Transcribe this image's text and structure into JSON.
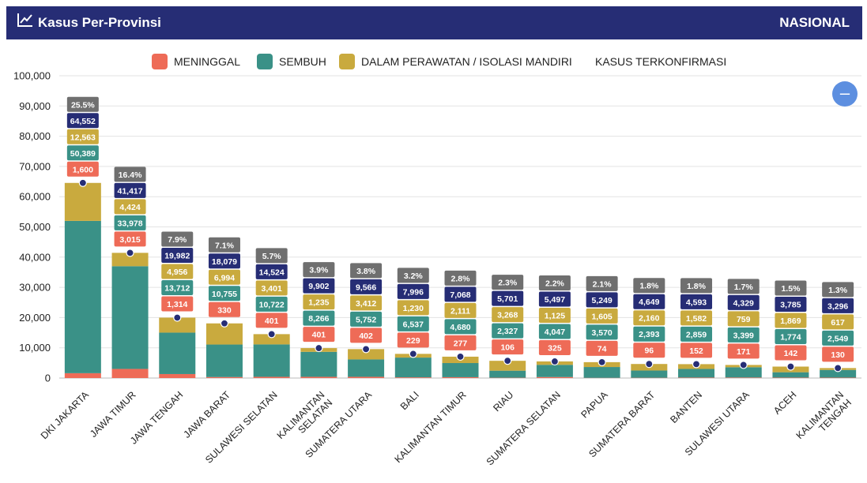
{
  "header": {
    "title": "Kasus Per-Provinsi",
    "scope": "NASIONAL",
    "title_icon": "line-chart-icon"
  },
  "collapse_button": "–",
  "chart_data": {
    "type": "bar",
    "stacked": true,
    "categories": [
      "DKI JAKARTA",
      "JAWA TIMUR",
      "JAWA TENGAH",
      "JAWA BARAT",
      "SULAWESI SELATAN",
      "KALIMANTAN SELATAN",
      "SUMATERA UTARA",
      "BALI",
      "KALIMANTAN TIMUR",
      "RIAU",
      "SUMATERA SELATAN",
      "PAPUA",
      "SUMATERA BARAT",
      "BANTEN",
      "SULAWESI UTARA",
      "ACEH",
      "KALIMANTAN TENGAH"
    ],
    "category_lines": [
      [
        "DKI JAKARTA"
      ],
      [
        "JAWA TIMUR"
      ],
      [
        "JAWA TENGAH"
      ],
      [
        "JAWA BARAT"
      ],
      [
        "SULAWESI SELATAN"
      ],
      [
        "KALIMANTAN",
        "SELATAN"
      ],
      [
        "SUMATERA UTARA"
      ],
      [
        "BALI"
      ],
      [
        "KALIMANTAN TIMUR"
      ],
      [
        "RIAU"
      ],
      [
        "SUMATERA SELATAN"
      ],
      [
        "PAPUA"
      ],
      [
        "SUMATERA BARAT"
      ],
      [
        "BANTEN"
      ],
      [
        "SULAWESI UTARA"
      ],
      [
        "ACEH"
      ],
      [
        "KALIMANTAN",
        "TENGAH"
      ]
    ],
    "series": [
      {
        "name": "MENINGGAL",
        "color": "#ee6b57",
        "values": [
          1600,
          3015,
          1314,
          330,
          401,
          401,
          402,
          229,
          277,
          106,
          325,
          74,
          96,
          152,
          171,
          142,
          130
        ],
        "labels": [
          "1,600",
          "3,015",
          "1,314",
          "330",
          "401",
          "401",
          "402",
          "229",
          "277",
          "106",
          "325",
          "74",
          "96",
          "152",
          "171",
          "142",
          "130"
        ]
      },
      {
        "name": "SEMBUH",
        "color": "#3a9187",
        "values": [
          50389,
          33978,
          13712,
          10755,
          10722,
          8266,
          5752,
          6537,
          4680,
          2327,
          4047,
          3570,
          2393,
          2859,
          3399,
          1774,
          2549
        ],
        "labels": [
          "50,389",
          "33,978",
          "13,712",
          "10,755",
          "10,722",
          "8,266",
          "5,752",
          "6,537",
          "4,680",
          "2,327",
          "4,047",
          "3,570",
          "2,393",
          "2,859",
          "3,399",
          "1,774",
          "2,549"
        ]
      },
      {
        "name": "DALAM PERAWATAN / ISOLASI MANDIRI",
        "color": "#c9aa3e",
        "values": [
          12563,
          4424,
          4956,
          6994,
          3401,
          1235,
          3412,
          1230,
          2111,
          3268,
          1125,
          1605,
          2160,
          1582,
          759,
          1869,
          617
        ],
        "labels": [
          "12,563",
          "4,424",
          "4,956",
          "6,994",
          "3,401",
          "1,235",
          "3,412",
          "1,230",
          "2,111",
          "3,268",
          "1,125",
          "1,605",
          "2,160",
          "1,582",
          "759",
          "1,869",
          "617"
        ]
      }
    ],
    "confirmed": {
      "name": "KASUS TERKONFIRMASI",
      "color": "#262d75",
      "values": [
        64552,
        41417,
        19982,
        18079,
        14524,
        9902,
        9566,
        7996,
        7068,
        5701,
        5497,
        5249,
        4649,
        4593,
        4329,
        3785,
        3296
      ],
      "labels": [
        "64,552",
        "41,417",
        "19,982",
        "18,079",
        "14,524",
        "9,902",
        "9,566",
        "7,996",
        "7,068",
        "5,701",
        "5,497",
        "5,249",
        "4,649",
        "4,593",
        "4,329",
        "3,785",
        "3,296"
      ]
    },
    "share": {
      "color": "#6f6f6f",
      "labels": [
        "25.5%",
        "16.4%",
        "7.9%",
        "7.1%",
        "5.7%",
        "3.9%",
        "3.8%",
        "3.2%",
        "2.8%",
        "2.3%",
        "2.2%",
        "2.1%",
        "1.8%",
        "1.8%",
        "1.7%",
        "1.5%",
        "1.3%"
      ]
    },
    "y_ticks": [
      "0",
      "10,000",
      "20,000",
      "30,000",
      "40,000",
      "50,000",
      "60,000",
      "70,000",
      "80,000",
      "90,000",
      "100,000"
    ],
    "ylim": [
      0,
      100000
    ],
    "grid": true,
    "legend_position": "top"
  }
}
